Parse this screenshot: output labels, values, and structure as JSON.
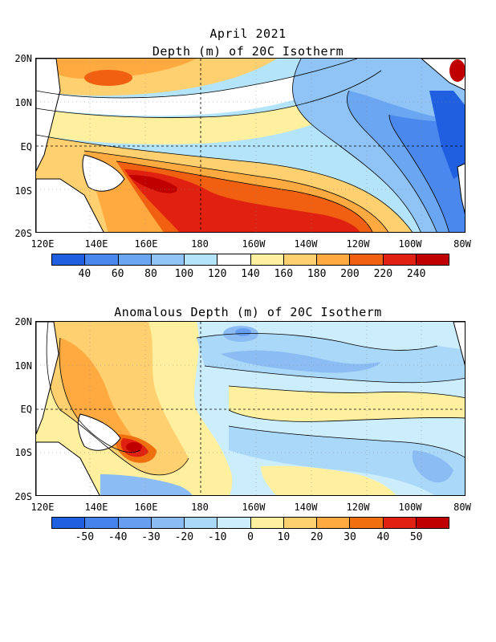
{
  "header": {
    "date": "April 2021",
    "panel1_title": "Depth (m) of 20C Isotherm",
    "panel2_title": "Anomalous Depth (m) of 20C Isotherm"
  },
  "axes": {
    "lat_labels": [
      "20N",
      "10N",
      "EQ",
      "10S",
      "20S"
    ],
    "lon_labels": [
      "120E",
      "140E",
      "160E",
      "180",
      "160W",
      "140W",
      "120W",
      "100W",
      "80W"
    ]
  },
  "panel1": {
    "colorbar_labels": [
      "40",
      "60",
      "80",
      "100",
      "120",
      "140",
      "160",
      "180",
      "200",
      "220",
      "240"
    ],
    "colors": [
      "#2060e0",
      "#4a88ee",
      "#6aa6f2",
      "#90c4f6",
      "#b4e4fa",
      "#ffffff",
      "#fff0a0",
      "#ffd070",
      "#ffaa40",
      "#f06010",
      "#e02010",
      "#c00000"
    ]
  },
  "panel2": {
    "colorbar_labels": [
      "-50",
      "-40",
      "-30",
      "-20",
      "-10",
      "0",
      "10",
      "20",
      "30",
      "40",
      "50"
    ],
    "colors": [
      "#1e60e0",
      "#4684ec",
      "#689ef0",
      "#8cbcf4",
      "#aad8f8",
      "#cceefc",
      "#fff0a0",
      "#ffd070",
      "#ffaa40",
      "#f07010",
      "#e02010",
      "#c00000"
    ]
  },
  "chart_data": [
    {
      "type": "heatmap",
      "title": "Depth (m) of 20C Isotherm",
      "subtitle": "April 2021",
      "x_range": [
        "120E",
        "80W"
      ],
      "y_range": [
        "20S",
        "20N"
      ],
      "contour_levels": [
        40,
        60,
        80,
        100,
        120,
        140,
        160,
        180,
        200,
        220,
        240
      ],
      "regions": [
        {
          "area": "western tropical North Pacific (~140E-165E, 15N)",
          "value": 200
        },
        {
          "area": "western Pacific near equator",
          "value": 160
        },
        {
          "area": "central South Pacific (160E-120W, 5S-18S)",
          "value": 230
        },
        {
          "area": "eastern equatorial Pacific (120W-90W)",
          "value": 60
        },
        {
          "area": "eastern Pacific near 10N (100W-90W)",
          "value": 40
        }
      ]
    },
    {
      "type": "heatmap",
      "title": "Anomalous Depth (m) of 20C Isotherm",
      "x_range": [
        "120E",
        "80W"
      ],
      "y_range": [
        "20S",
        "20N"
      ],
      "contour_levels": [
        -50,
        -40,
        -30,
        -20,
        -10,
        0,
        10,
        20,
        30,
        40,
        50
      ],
      "regions": [
        {
          "area": "western Pacific (130E-175E)",
          "value": 20
        },
        {
          "area": "near 150E, 8S",
          "value": 50
        },
        {
          "area": "central North Pacific (170E-120W, 5N-18N)",
          "value": -20
        },
        {
          "area": "central South Pacific (150W-100W, 10S-20S)",
          "value": 10
        },
        {
          "area": "equatorial central Pacific",
          "value": 0
        }
      ]
    }
  ]
}
